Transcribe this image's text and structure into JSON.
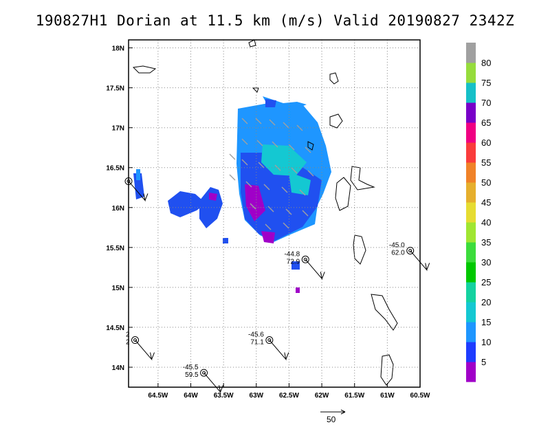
{
  "title": "190827H1 Dorian at 11.5 km (m/s) Valid 20190827 2342Z",
  "chart_data": {
    "type": "heatmap",
    "title": "190827H1 Dorian at 11.5 km (m/s) Valid 20190827 2342Z",
    "x_ticks": [
      "64.5W",
      "64W",
      "63.5W",
      "63W",
      "62.5W",
      "62W",
      "61.5W",
      "61W",
      "60.5W"
    ],
    "y_ticks": [
      "18N",
      "17.5N",
      "17N",
      "16.5N",
      "16N",
      "15.5N",
      "15N",
      "14.5N",
      "14N"
    ],
    "xlim": [
      -64.95,
      -60.5
    ],
    "ylim": [
      13.75,
      18.1
    ],
    "grid": true,
    "colorbar": {
      "labels": [
        "5",
        "10",
        "15",
        "20",
        "25",
        "30",
        "35",
        "40",
        "45",
        "50",
        "55",
        "60",
        "65",
        "70",
        "75",
        "80"
      ],
      "colors": [
        "#a000c8",
        "#1e3cff",
        "#1e96ff",
        "#14c8d2",
        "#14d2a0",
        "#00c800",
        "#3cdc3c",
        "#a0e632",
        "#e6dc32",
        "#e6af2d",
        "#f08228",
        "#fa3c3c",
        "#f00082",
        "#7800c8",
        "#16c0c8",
        "#96dc3c",
        "#a0a0a0"
      ]
    },
    "vector_reference": {
      "label": "50"
    },
    "dropsondes": [
      {
        "lon": -62.25,
        "lat": 15.35,
        "pressure": "-44.8",
        "wind": "72.9"
      },
      {
        "lon": -60.65,
        "lat": 15.46,
        "pressure": "-45.0",
        "wind": "62.0"
      },
      {
        "lon": -62.8,
        "lat": 14.34,
        "pressure": "-45.6",
        "wind": "71.1"
      },
      {
        "lon": -63.8,
        "lat": 13.93,
        "pressure": "-45.5",
        "wind": "59.5"
      },
      {
        "lon": -64.85,
        "lat": 14.34,
        "pressure": "2",
        "wind": "2"
      },
      {
        "lon": -64.95,
        "lat": 16.33,
        "pressure": "",
        "wind": ""
      }
    ]
  }
}
